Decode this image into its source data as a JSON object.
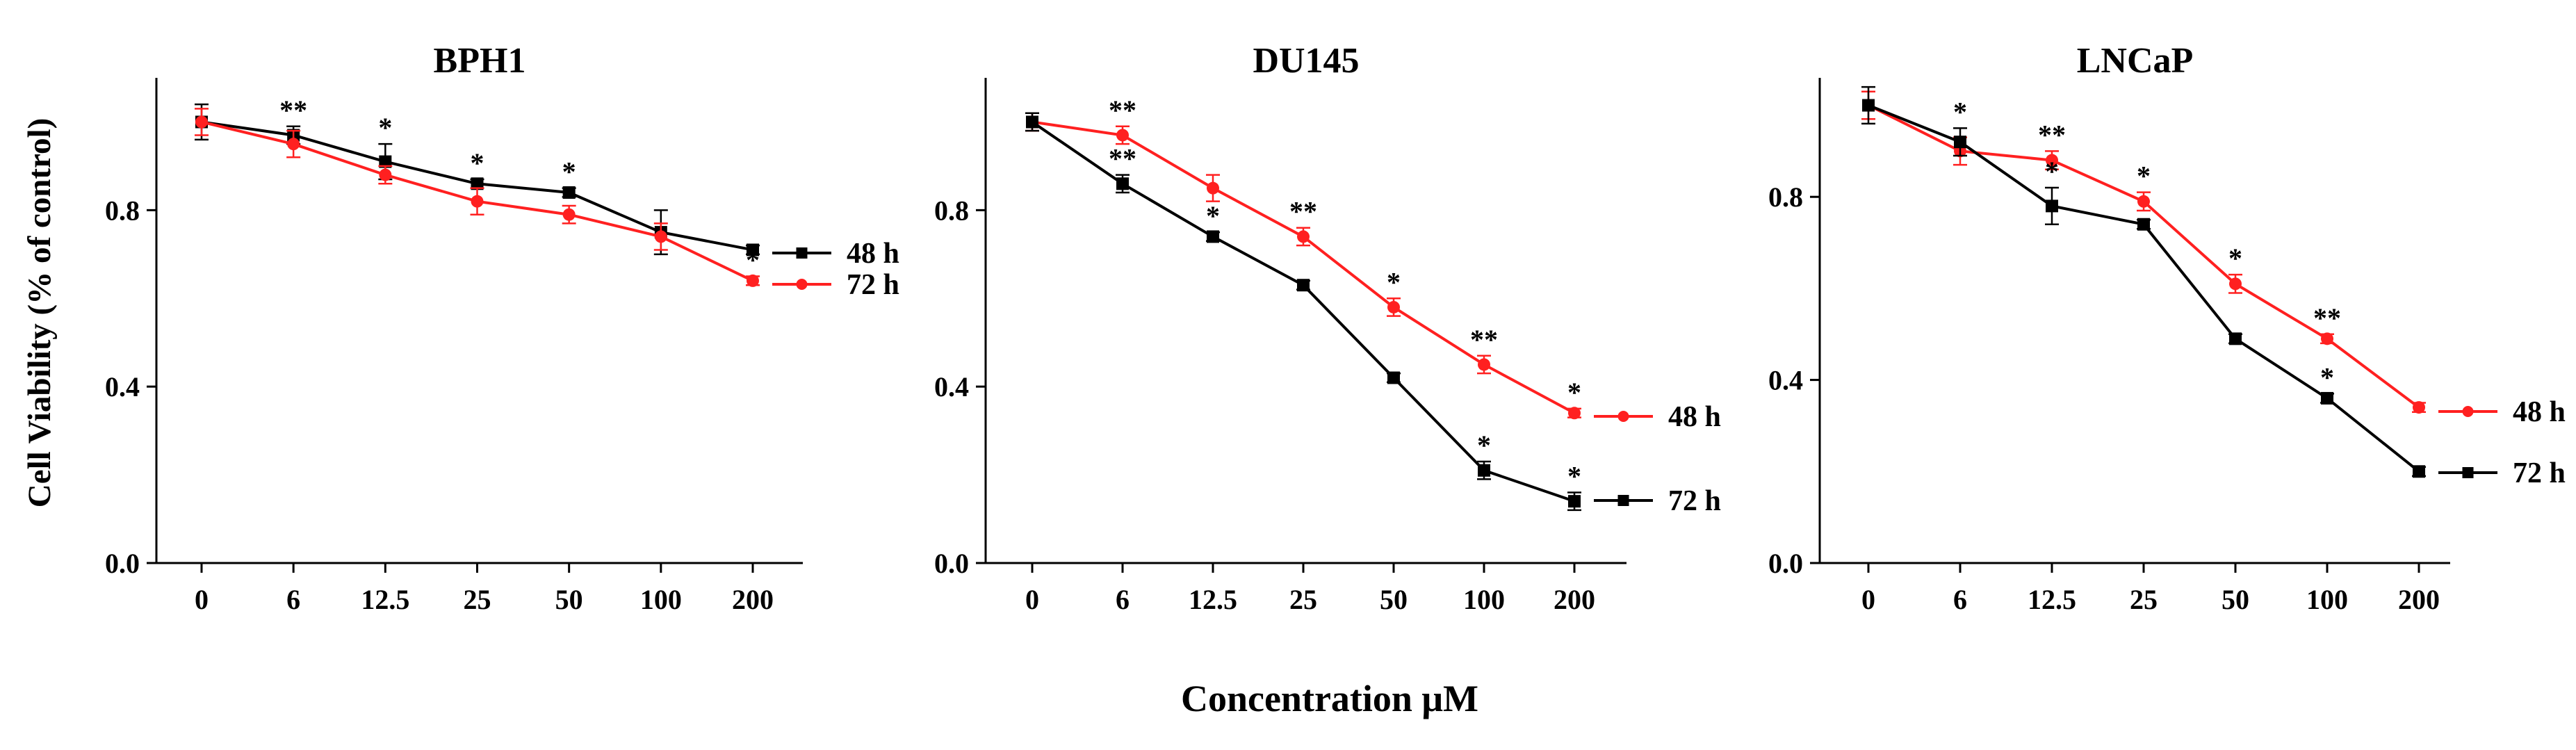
{
  "figure": {
    "y_axis_label": "Cell Viability (% of control)",
    "x_axis_label": "Concentration μM",
    "legend_48h": "48 h",
    "legend_72h": "72 h"
  },
  "colors": {
    "h48_bph1": "#000000",
    "h72_bph1": "#ff2020",
    "black": "#000000",
    "red": "#ff2020"
  },
  "chart_data": [
    {
      "type": "line",
      "title": "BPH1",
      "categories": [
        "0",
        "6",
        "12.5",
        "25",
        "50",
        "100",
        "200"
      ],
      "ylim": [
        0,
        1.1
      ],
      "yticks": [
        "0.0",
        "0.4",
        "0.8"
      ],
      "ytick_values": [
        0,
        0.4,
        0.8
      ],
      "series": [
        {
          "name": "48 h",
          "color": "#000000",
          "marker": "square",
          "values": [
            1.0,
            0.97,
            0.91,
            0.86,
            0.84,
            0.75,
            0.71
          ],
          "errors": [
            0.04,
            0.02,
            0.04,
            0.01,
            0.01,
            0.05,
            0.01
          ],
          "annotations": [
            "",
            "**",
            "*",
            "*",
            "*",
            "",
            ""
          ]
        },
        {
          "name": "72 h",
          "color": "#ff2020",
          "marker": "circle",
          "values": [
            1.0,
            0.95,
            0.88,
            0.82,
            0.79,
            0.74,
            0.64
          ],
          "errors": [
            0.03,
            0.03,
            0.02,
            0.03,
            0.02,
            0.03,
            0.01
          ],
          "annotations": [
            "",
            "",
            "",
            "",
            "",
            "",
            "*"
          ]
        }
      ]
    },
    {
      "type": "line",
      "title": "DU145",
      "categories": [
        "0",
        "6",
        "12.5",
        "25",
        "50",
        "100",
        "200"
      ],
      "ylim": [
        0,
        1.1
      ],
      "yticks": [
        "0.0",
        "0.4",
        "0.8"
      ],
      "ytick_values": [
        0,
        0.4,
        0.8
      ],
      "series": [
        {
          "name": "48 h",
          "color": "#ff2020",
          "marker": "circle",
          "values": [
            1.0,
            0.97,
            0.85,
            0.74,
            0.58,
            0.45,
            0.34
          ],
          "errors": [
            0.02,
            0.02,
            0.03,
            0.02,
            0.02,
            0.02,
            0.01
          ],
          "annotations": [
            "",
            "**",
            "",
            "**",
            "*",
            "**",
            "*"
          ]
        },
        {
          "name": "72 h",
          "color": "#000000",
          "marker": "square",
          "values": [
            1.0,
            0.86,
            0.74,
            0.63,
            0.42,
            0.21,
            0.14
          ],
          "errors": [
            0.02,
            0.02,
            0.01,
            0.01,
            0.01,
            0.02,
            0.02
          ],
          "annotations": [
            "",
            "**",
            "*",
            "",
            "",
            "*",
            "*"
          ]
        }
      ]
    },
    {
      "type": "line",
      "title": "LNCaP",
      "categories": [
        "0",
        "6",
        "12.5",
        "25",
        "50",
        "100",
        "200"
      ],
      "ylim": [
        0,
        1.06
      ],
      "yticks": [
        "0.0",
        "0.4",
        "0.8"
      ],
      "ytick_values": [
        0,
        0.4,
        0.8
      ],
      "series": [
        {
          "name": "48 h",
          "color": "#ff2020",
          "marker": "circle",
          "values": [
            1.0,
            0.9,
            0.88,
            0.79,
            0.61,
            0.49,
            0.34
          ],
          "errors": [
            0.03,
            0.03,
            0.02,
            0.02,
            0.02,
            0.01,
            0.01
          ],
          "annotations": [
            "",
            "",
            "**",
            "*",
            "*",
            "**",
            ""
          ]
        },
        {
          "name": "72 h",
          "color": "#000000",
          "marker": "square",
          "values": [
            1.0,
            0.92,
            0.78,
            0.74,
            0.49,
            0.36,
            0.2
          ],
          "errors": [
            0.04,
            0.03,
            0.04,
            0.01,
            0.01,
            0.01,
            0.01
          ],
          "annotations": [
            "",
            "*",
            "*",
            "",
            "",
            "*",
            ""
          ]
        }
      ]
    }
  ]
}
